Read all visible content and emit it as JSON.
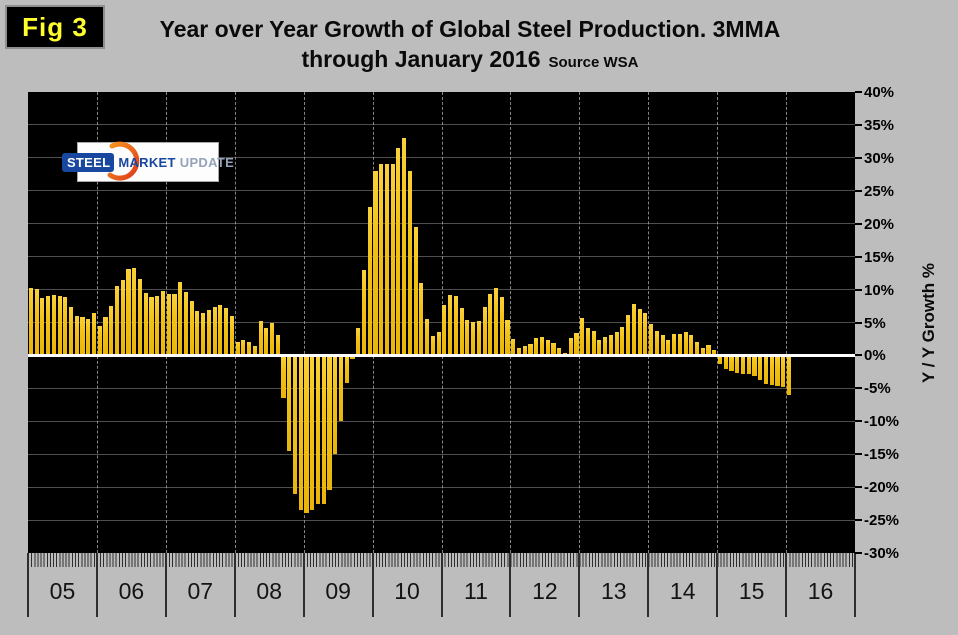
{
  "figure_label": "Fig 3",
  "logo": {
    "steel": "STEEL",
    "market": "MARKET",
    "update": "UPDATE"
  },
  "chart_data": {
    "type": "bar",
    "title": "Year over Year Growth of Global Steel Production. 3MMA",
    "subtitle": "through January 2016",
    "source_note": "Source WSA",
    "ylabel": "Y / Y Growth %",
    "ylim": [
      -30,
      40
    ],
    "grid": true,
    "legend": false,
    "bar_color": "#F2C115",
    "background": "#000000",
    "x_start": "2005-01",
    "x_end": "2016-01",
    "x_years": [
      "05",
      "06",
      "07",
      "08",
      "09",
      "10",
      "11",
      "12",
      "13",
      "14",
      "15",
      "16"
    ],
    "y_ticks": [
      {
        "v": 40,
        "label": "40%"
      },
      {
        "v": 35,
        "label": "35%"
      },
      {
        "v": 30,
        "label": "30%"
      },
      {
        "v": 25,
        "label": "25%"
      },
      {
        "v": 20,
        "label": "20%"
      },
      {
        "v": 15,
        "label": "15%"
      },
      {
        "v": 10,
        "label": "10%"
      },
      {
        "v": 5,
        "label": "5%"
      },
      {
        "v": 0,
        "label": "0%"
      },
      {
        "v": -5,
        "label": "-5%"
      },
      {
        "v": -10,
        "label": "-10%"
      },
      {
        "v": -15,
        "label": "-15%"
      },
      {
        "v": -20,
        "label": "-20%"
      },
      {
        "v": -25,
        "label": "-25%"
      },
      {
        "v": -30,
        "label": "-30%"
      }
    ],
    "series": [
      {
        "name": "Y/Y growth % (3MMA)",
        "values": [
          10.2,
          10.1,
          8.7,
          9.0,
          9.2,
          9.0,
          8.8,
          7.3,
          6.0,
          5.8,
          5.6,
          6.4,
          4.5,
          5.9,
          7.5,
          10.6,
          11.4,
          13.1,
          13.3,
          11.6,
          9.5,
          8.8,
          9.0,
          9.8,
          9.3,
          9.3,
          11.1,
          9.6,
          8.3,
          6.7,
          6.5,
          6.9,
          7.3,
          7.7,
          7.2,
          6.0,
          2.1,
          2.4,
          2.1,
          1.4,
          5.2,
          4.2,
          4.9,
          3.1,
          -6.5,
          -14.5,
          -21.0,
          -23.5,
          -24.0,
          -23.5,
          -22.5,
          -22.5,
          -20.5,
          -15.0,
          -10.0,
          -4.2,
          -0.5,
          4.2,
          13.0,
          22.5,
          28.0,
          29.0,
          29.0,
          29.0,
          31.5,
          33.0,
          28.0,
          19.5,
          11.0,
          5.5,
          3.0,
          3.5,
          7.7,
          9.2,
          9.0,
          7.2,
          5.4,
          5.1,
          5.2,
          7.4,
          9.4,
          10.3,
          8.8,
          5.4,
          2.5,
          1.2,
          1.5,
          1.7,
          2.6,
          2.8,
          2.3,
          1.9,
          1.1,
          0.4,
          2.6,
          3.4,
          5.7,
          4.1,
          3.7,
          2.3,
          2.8,
          3.1,
          3.5,
          4.3,
          6.1,
          7.8,
          7.1,
          6.5,
          4.8,
          3.7,
          3.1,
          2.3,
          3.2,
          3.3,
          3.5,
          3.1,
          2.0,
          1.1,
          1.6,
          0.9,
          -1.3,
          -2.0,
          -2.3,
          -2.6,
          -2.8,
          -2.8,
          -3.2,
          -3.8,
          -4.3,
          -4.5,
          -4.7,
          -4.8,
          -6.0
        ]
      }
    ]
  }
}
